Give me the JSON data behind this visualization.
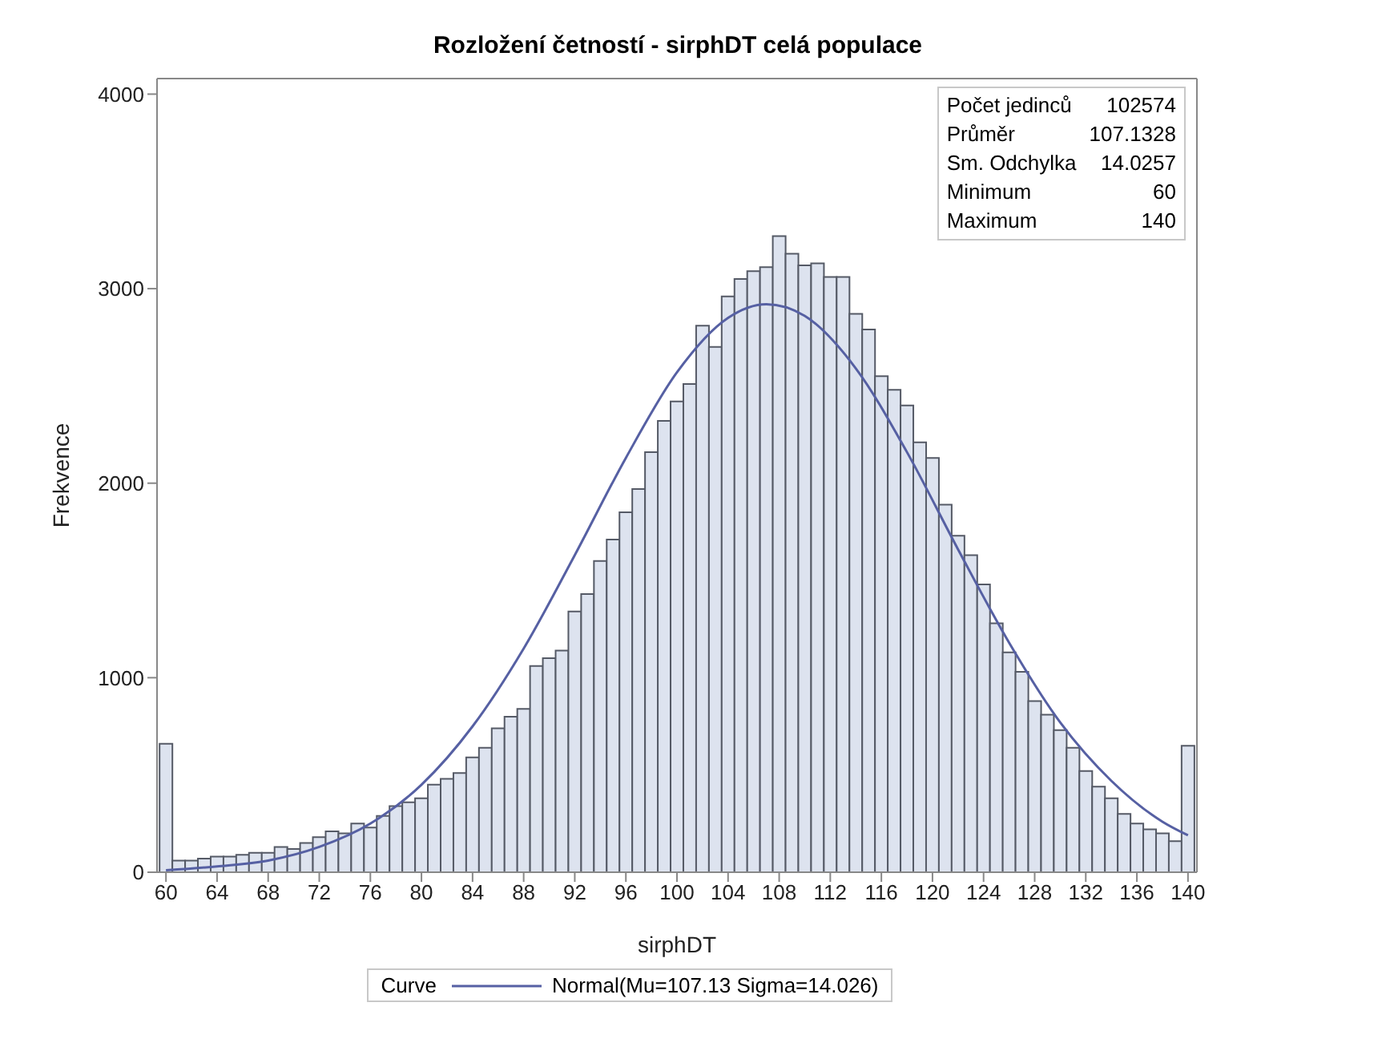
{
  "chart_data": {
    "type": "histogram",
    "title": "Rozložení četností - sirphDT celá populace",
    "xlabel": "sirphDT",
    "ylabel": "Frekvence",
    "legend_title": "Curve",
    "bins": [
      59.5,
      60.5,
      61.5,
      62.5,
      63.5,
      64.5,
      65.5,
      66.5,
      67.5,
      68.5,
      69.5,
      70.5,
      71.5,
      72.5,
      73.5,
      74.5,
      75.5,
      76.5,
      77.5,
      78.5,
      79.5,
      80.5,
      81.5,
      82.5,
      83.5,
      84.5,
      85.5,
      86.5,
      87.5,
      88.5,
      89.5,
      90.5,
      91.5,
      92.5,
      93.5,
      94.5,
      95.5,
      96.5,
      97.5,
      98.5,
      99.5,
      100.5,
      101.5,
      102.5,
      103.5,
      104.5,
      105.5,
      106.5,
      107.5,
      108.5,
      109.5,
      110.5,
      111.5,
      112.5,
      113.5,
      114.5,
      115.5,
      116.5,
      117.5,
      118.5,
      119.5,
      120.5,
      121.5,
      122.5,
      123.5,
      124.5,
      125.5,
      126.5,
      127.5,
      128.5,
      129.5,
      130.5,
      131.5,
      132.5,
      133.5,
      134.5,
      135.5,
      136.5,
      137.5,
      138.5,
      139.5,
      140.5
    ],
    "values": [
      660,
      60,
      60,
      70,
      80,
      80,
      90,
      100,
      100,
      130,
      120,
      150,
      180,
      210,
      200,
      250,
      230,
      290,
      340,
      360,
      380,
      450,
      480,
      510,
      590,
      640,
      740,
      800,
      840,
      1060,
      1100,
      1140,
      1340,
      1430,
      1600,
      1710,
      1850,
      1970,
      2160,
      2320,
      2420,
      2510,
      2810,
      2700,
      2960,
      3050,
      3090,
      3110,
      3270,
      3180,
      3120,
      3130,
      3060,
      3060,
      2870,
      2790,
      2550,
      2480,
      2400,
      2210,
      2130,
      1890,
      1730,
      1630,
      1480,
      1280,
      1130,
      1030,
      880,
      810,
      730,
      640,
      520,
      440,
      380,
      300,
      250,
      220,
      200,
      160,
      650
    ],
    "color": "#dde3ef",
    "series": [
      {
        "type": "line",
        "name": "Normal(Mu=107.13 Sigma=14.026)",
        "color": "#5660a3",
        "x": [
          60,
          64,
          68,
          72,
          76,
          80,
          84,
          88,
          92,
          96,
          100,
          104,
          107,
          110,
          114,
          118,
          122,
          126,
          130,
          134,
          138,
          140
        ],
        "values": [
          10,
          30,
          60,
          130,
          250,
          450,
          750,
          1150,
          1630,
          2130,
          2570,
          2850,
          2920,
          2860,
          2590,
          2160,
          1660,
          1180,
          770,
          470,
          260,
          190
        ]
      }
    ],
    "xlim": [
      59.3,
      140.7
    ],
    "xticks": [
      60,
      64,
      68,
      72,
      76,
      80,
      84,
      88,
      92,
      96,
      100,
      104,
      108,
      112,
      116,
      120,
      124,
      128,
      132,
      136,
      140
    ],
    "ylim": [
      0,
      4080
    ],
    "yticks": [
      0,
      1000,
      2000,
      3000,
      4000
    ],
    "grid": false,
    "legend": "bottom",
    "marker": "none",
    "line_style": "solid",
    "annotations": [
      "Počet jedinců",
      "102574",
      "Průměr",
      "107.1328",
      "Sm. Odchylka",
      "14.0257",
      "Minimum",
      "60",
      "Maximum",
      "140"
    ]
  }
}
